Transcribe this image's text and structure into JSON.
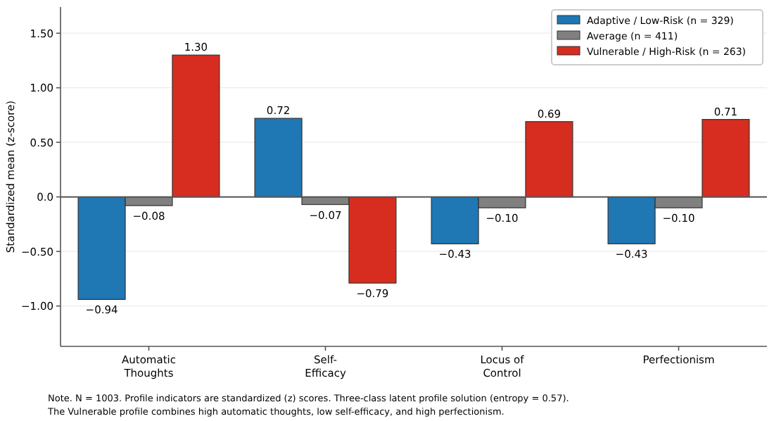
{
  "chart_data": {
    "type": "bar",
    "ylabel": "Standardized mean (z-score)",
    "categories": [
      "Automatic\nThoughts",
      "Self-\nEfficacy",
      "Locus of\nControl",
      "Perfectionism"
    ],
    "series": [
      {
        "name": "Adaptive / Low-Risk (n = 329)",
        "color": "#1f77b4",
        "values": [
          -0.94,
          0.72,
          -0.43,
          -0.43
        ],
        "value_labels": [
          "−0.94",
          "0.72",
          "−0.43",
          "−0.43"
        ]
      },
      {
        "name": "Average (n = 411)",
        "color": "#808080",
        "values": [
          -0.08,
          -0.07,
          -0.1,
          -0.1
        ],
        "value_labels": [
          "−0.08",
          "−0.07",
          "−0.10",
          "−0.10"
        ]
      },
      {
        "name": "Vulnerable / High-Risk (n = 263)",
        "color": "#d62d20",
        "values": [
          1.3,
          -0.79,
          0.69,
          0.71
        ],
        "value_labels": [
          "1.30",
          "−0.79",
          "0.69",
          "0.71"
        ]
      }
    ],
    "ylim": [
      -1.37,
      1.74
    ],
    "yticks": [
      {
        "value": -1,
        "label": "−1.00"
      },
      {
        "value": -0.5,
        "label": "−0.50"
      },
      {
        "value": 0,
        "label": "0.0"
      },
      {
        "value": 0.5,
        "label": "0.50"
      },
      {
        "value": 1,
        "label": "1.00"
      },
      {
        "value": 1.5,
        "label": "1.50"
      }
    ],
    "ref_lines": [
      {
        "axis": "y",
        "value": 0,
        "color": "#555555"
      }
    ],
    "grid": "y",
    "legend": "top right",
    "annotations": [
      "Note. N = 1003. Profile indicators are standardized (z) scores. Three-class latent profile solution (entropy = 0.57).",
      "The Vulnerable profile combines high automatic thoughts, low self-efficacy, and high perfectionism."
    ]
  }
}
